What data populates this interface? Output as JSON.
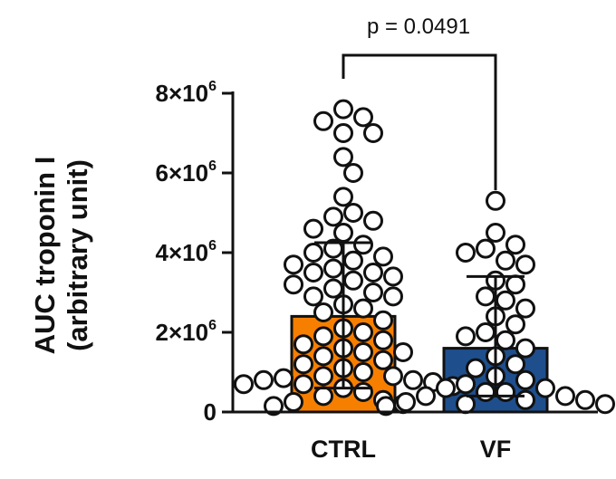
{
  "chart_data": {
    "type": "bar",
    "ylabel_line1": "AUC troponin I",
    "ylabel_line2": "(arbitrary unit)",
    "ylim": [
      0,
      8000000
    ],
    "y_ticks": [
      {
        "value": 0,
        "base": "0",
        "exp": ""
      },
      {
        "value": 2000000,
        "base": "2×10",
        "exp": "6"
      },
      {
        "value": 4000000,
        "base": "4×10",
        "exp": "6"
      },
      {
        "value": 6000000,
        "base": "6×10",
        "exp": "6"
      },
      {
        "value": 8000000,
        "base": "8×10",
        "exp": "6"
      }
    ],
    "categories": [
      "CTRL",
      "VF"
    ],
    "values": [
      2400000,
      1600000
    ],
    "error_upper": [
      4250000,
      3400000
    ],
    "error_lower": [
      600000,
      400000
    ],
    "colors": [
      "#f77f00",
      "#1f4e8c"
    ],
    "annotation": "p = 0.0491",
    "points": [
      [
        7600000,
        7400000,
        7300000,
        7000000,
        7000000,
        6400000,
        6000000,
        5400000,
        5000000,
        4900000,
        4800000,
        4600000,
        4500000,
        4200000,
        4100000,
        4000000,
        3900000,
        3800000,
        3700000,
        3600000,
        3500000,
        3500000,
        3400000,
        3300000,
        3200000,
        3100000,
        3000000,
        2900000,
        2900000,
        2700000,
        2600000,
        2500000,
        2300000,
        2100000,
        2000000,
        1900000,
        1800000,
        1700000,
        1600000,
        1500000,
        1500000,
        1400000,
        1300000,
        1200000,
        1100000,
        1000000,
        900000,
        900000,
        850000,
        800000,
        800000,
        750000,
        700000,
        700000,
        650000,
        600000,
        500000,
        400000,
        300000,
        250000,
        200000,
        150000
      ],
      [
        5300000,
        4500000,
        4200000,
        4100000,
        4000000,
        3800000,
        3700000,
        3300000,
        3200000,
        2900000,
        2800000,
        2600000,
        2400000,
        2200000,
        2000000,
        1900000,
        1800000,
        1600000,
        1400000,
        1200000,
        1100000,
        900000,
        800000,
        700000,
        600000,
        600000,
        500000,
        500000,
        400000,
        400000,
        300000,
        300000,
        250000,
        200000,
        200000,
        150000
      ]
    ]
  }
}
